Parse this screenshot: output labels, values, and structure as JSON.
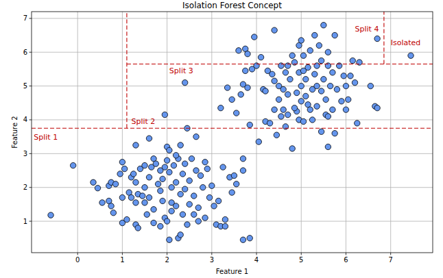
{
  "chart_data": {
    "type": "scatter",
    "title": "Isolation Forest Concept",
    "x_label": "Feature 1",
    "y_label": "Feature 2",
    "color": "#6495ed",
    "marker": "circle",
    "grid": true,
    "xlim": [
      -1.03,
      7.94
    ],
    "ylim": [
      0.07,
      7.2
    ],
    "xticks": [
      0,
      1,
      2,
      3,
      4,
      5,
      6,
      7
    ],
    "yticks": [
      1,
      2,
      3,
      4,
      5,
      6,
      7
    ],
    "x": [
      -0.6,
      -0.1,
      0.35,
      0.45,
      0.55,
      0.7,
      0.75,
      0.8,
      0.7,
      0.75,
      0.85,
      0.95,
      1.0,
      1.05,
      1.0,
      1.0,
      1.1,
      1.15,
      1.2,
      1.25,
      1.3,
      1.3,
      1.35,
      1.3,
      1.35,
      1.45,
      1.4,
      1.5,
      1.5,
      1.55,
      1.6,
      1.6,
      1.65,
      1.7,
      1.75,
      1.7,
      1.8,
      1.85,
      1.85,
      1.9,
      1.85,
      1.95,
      1.95,
      2.0,
      2.05,
      2.0,
      2.05,
      2.1,
      2.1,
      2.0,
      2.05,
      2.1,
      2.15,
      2.2,
      2.2,
      2.25,
      2.25,
      2.3,
      2.3,
      2.35,
      2.35,
      2.4,
      2.4,
      2.45,
      2.45,
      2.5,
      2.5,
      2.55,
      2.6,
      2.65,
      2.65,
      2.7,
      2.7,
      2.75,
      2.8,
      2.85,
      2.85,
      2.9,
      2.95,
      3.0,
      3.05,
      3.1,
      3.15,
      3.2,
      3.25,
      3.3,
      3.3,
      3.4,
      3.5,
      3.45,
      3.55,
      3.7,
      3.7,
      3.7,
      3.85,
      1.7,
      2.6,
      1.5,
      1.2,
      2.2,
      1.9,
      2.3,
      1.6,
      1.3,
      1.95,
      2.4,
      3.85,
      4.05,
      4.2,
      4.3,
      4.45,
      4.55,
      4.65,
      4.8,
      4.95,
      5.05,
      5.15,
      5.25,
      5.45,
      5.55,
      5.6,
      5.75,
      6.0,
      6.25,
      6.65,
      6.7,
      3.2,
      3.35,
      3.45,
      3.55,
      3.65,
      3.7,
      3.75,
      3.8,
      3.6,
      3.75,
      3.8,
      3.9,
      3.95,
      4.0,
      4.15,
      4.2,
      4.25,
      4.35,
      4.4,
      4.4,
      4.5,
      4.5,
      4.55,
      4.6,
      4.6,
      4.65,
      4.7,
      4.7,
      4.75,
      4.8,
      4.85,
      4.9,
      4.9,
      4.95,
      4.95,
      5.0,
      5.0,
      5.0,
      5.05,
      5.1,
      5.1,
      5.15,
      5.2,
      5.25,
      5.3,
      5.3,
      5.35,
      5.35,
      5.4,
      5.45,
      5.45,
      5.5,
      5.5,
      5.55,
      5.6,
      5.65,
      5.7,
      5.7,
      5.75,
      5.8,
      5.85,
      5.9,
      5.95,
      6.0,
      6.05,
      6.1,
      6.15,
      6.2,
      6.3,
      6.55,
      6.7,
      7.45,
      4.1,
      4.4,
      4.85,
      5.2,
      5.6,
      5.35,
      4.7,
      5.05,
      5.6
    ],
    "values": [
      1.18,
      2.65,
      2.15,
      1.98,
      1.55,
      1.6,
      1.45,
      1.25,
      2.05,
      2.15,
      2.1,
      2.4,
      2.75,
      2.55,
      1.7,
      0.95,
      1.05,
      1.85,
      2.3,
      2.4,
      2.15,
      1.55,
      1.8,
      0.9,
      0.8,
      1.75,
      2.55,
      2.65,
      2.0,
      1.2,
      1.7,
      2.3,
      2.6,
      2.85,
      2.7,
      1.35,
      2.1,
      1.9,
      2.5,
      2.25,
      0.85,
      2.6,
      1.1,
      3.2,
      3.1,
      2.8,
      2.45,
      2.0,
      1.55,
      1.0,
      0.45,
      1.3,
      2.65,
      2.15,
      1.45,
      2.85,
      0.5,
      3.25,
      1.8,
      2.4,
      1.2,
      2.7,
      1.95,
      0.9,
      3.75,
      2.2,
      1.5,
      2.85,
      1.75,
      3.5,
      2.5,
      1.4,
      1.0,
      2.35,
      2.0,
      2.75,
      1.1,
      2.55,
      1.7,
      2.05,
      1.45,
      0.9,
      1.6,
      0.85,
      2.6,
      1.05,
      0.85,
      2.3,
      2.35,
      1.85,
      2.1,
      2.85,
      2.5,
      0.45,
      0.5,
      0.95,
      1.2,
      1.55,
      1.7,
      2.95,
      1.6,
      0.6,
      3.45,
      3.25,
      4.15,
      5.1,
      3.85,
      3.35,
      3.95,
      3.9,
      3.55,
      4.1,
      3.8,
      3.15,
      4.0,
      3.95,
      4.45,
      4.0,
      3.65,
      4.15,
      3.2,
      3.6,
      4.3,
      3.9,
      4.4,
      4.35,
      4.35,
      4.95,
      4.6,
      4.2,
      4.75,
      5.05,
      5.45,
      4.95,
      6.05,
      6.1,
      5.95,
      5.5,
      6.45,
      5.6,
      4.9,
      4.85,
      5.45,
      5.35,
      6.65,
      5.15,
      4.6,
      5.0,
      5.6,
      4.3,
      4.9,
      5.4,
      4.15,
      4.75,
      5.2,
      5.9,
      5.7,
      4.25,
      4.8,
      5.4,
      6.2,
      6.35,
      5.0,
      4.55,
      5.9,
      5.2,
      4.7,
      5.55,
      6.05,
      4.9,
      6.5,
      5.35,
      4.4,
      5.0,
      6.2,
      5.75,
      4.85,
      6.8,
      5.2,
      4.6,
      5.6,
      5.0,
      4.3,
      5.4,
      6.5,
      4.9,
      5.6,
      4.55,
      5.3,
      5.0,
      4.6,
      5.3,
      5.75,
      5.1,
      5.7,
      5.0,
      6.4,
      5.9,
      5.85,
      4.3,
      4.35,
      4.3,
      4.1,
      5.6,
      5.6,
      5.45,
      6.0
    ],
    "splits": [
      {
        "orientation": "horizontal",
        "value": 3.75,
        "start": -1.03,
        "end": 7.94
      },
      {
        "orientation": "vertical",
        "value": 1.1,
        "start": 3.75,
        "end": 7.2
      },
      {
        "orientation": "horizontal",
        "value": 5.65,
        "start": 1.1,
        "end": 7.94
      },
      {
        "orientation": "vertical",
        "value": 6.85,
        "start": 5.65,
        "end": 7.2
      }
    ],
    "annotations": [
      {
        "text": "Split 1",
        "x": -0.98,
        "y": 3.42
      },
      {
        "text": "Split 2",
        "x": 1.2,
        "y": 3.88
      },
      {
        "text": "Split 3",
        "x": 2.05,
        "y": 5.38
      },
      {
        "text": "Split 4",
        "x": 6.2,
        "y": 6.62
      },
      {
        "text": "Isolated",
        "x": 7.0,
        "y": 6.2
      }
    ]
  }
}
